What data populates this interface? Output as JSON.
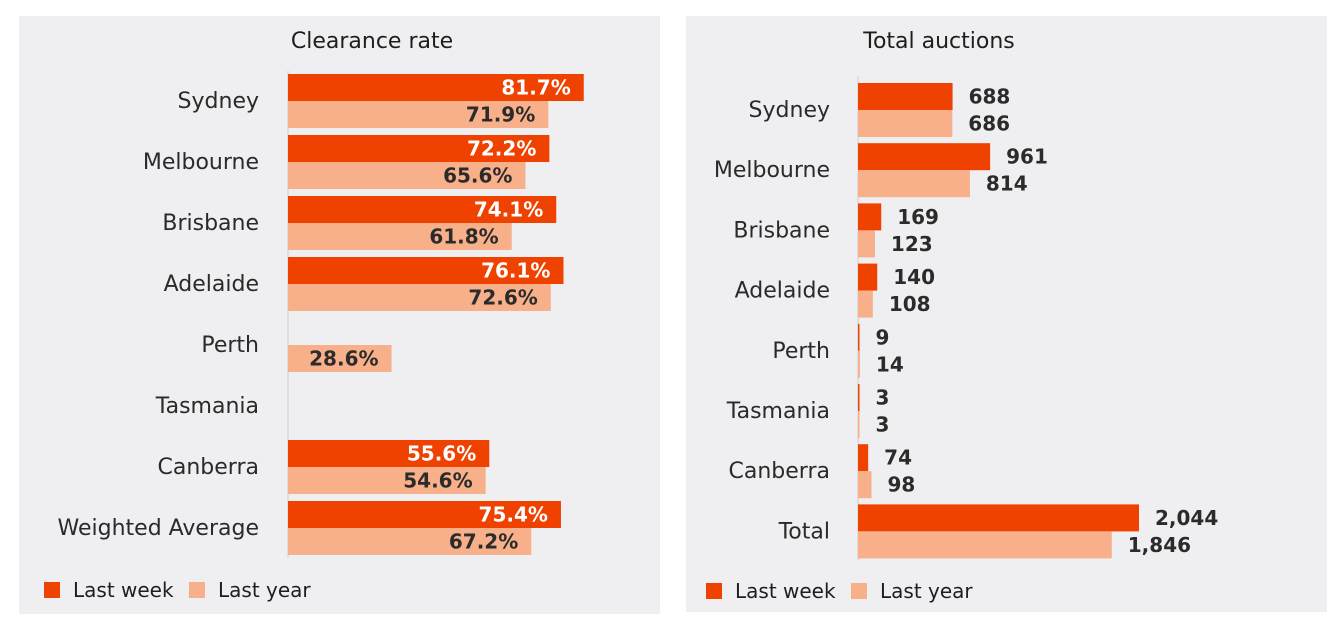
{
  "colors": {
    "last_week": "#ef4100",
    "last_year": "#f7b08a",
    "axis": "#d8d8d8",
    "panel": "#efeef0",
    "value_on_dark": "#ffffff",
    "value_on_light": "#2b2b2b"
  },
  "chart_data": [
    {
      "type": "bar",
      "orientation": "horizontal",
      "title": "Clearance rate",
      "categories": [
        "Sydney",
        "Melbourne",
        "Brisbane",
        "Adelaide",
        "Perth",
        "Tasmania",
        "Canberra",
        "Weighted Average"
      ],
      "series": [
        {
          "name": "Last week",
          "values": [
            81.7,
            72.2,
            74.1,
            76.1,
            null,
            null,
            55.6,
            75.4
          ],
          "labels": [
            "81.7%",
            "72.2%",
            "74.1%",
            "76.1%",
            "",
            "",
            "55.6%",
            "75.4%"
          ]
        },
        {
          "name": "Last year",
          "values": [
            71.9,
            65.6,
            61.8,
            72.6,
            28.6,
            null,
            54.6,
            67.2
          ],
          "labels": [
            "71.9%",
            "65.6%",
            "61.8%",
            "72.6%",
            "28.6%",
            "",
            "54.6%",
            "67.2%"
          ]
        }
      ],
      "xlim": [
        0,
        100
      ],
      "legend": "bottom-left",
      "value_labels": "inside-end"
    },
    {
      "type": "bar",
      "orientation": "horizontal",
      "title": "Total auctions",
      "categories": [
        "Sydney",
        "Melbourne",
        "Brisbane",
        "Adelaide",
        "Perth",
        "Tasmania",
        "Canberra",
        "Total"
      ],
      "series": [
        {
          "name": "Last week",
          "values": [
            688,
            961,
            169,
            140,
            9,
            3,
            74,
            2044
          ],
          "labels": [
            "688",
            "961",
            "169",
            "140",
            "9",
            "3",
            "74",
            "2,044"
          ]
        },
        {
          "name": "Last year",
          "values": [
            686,
            814,
            123,
            108,
            14,
            3,
            98,
            1846
          ],
          "labels": [
            "686",
            "814",
            "123",
            "108",
            "14",
            "3",
            "98",
            "1,846"
          ]
        }
      ],
      "xlim": [
        0,
        2044
      ],
      "legend": "bottom-left",
      "value_labels": "outside-end"
    }
  ]
}
